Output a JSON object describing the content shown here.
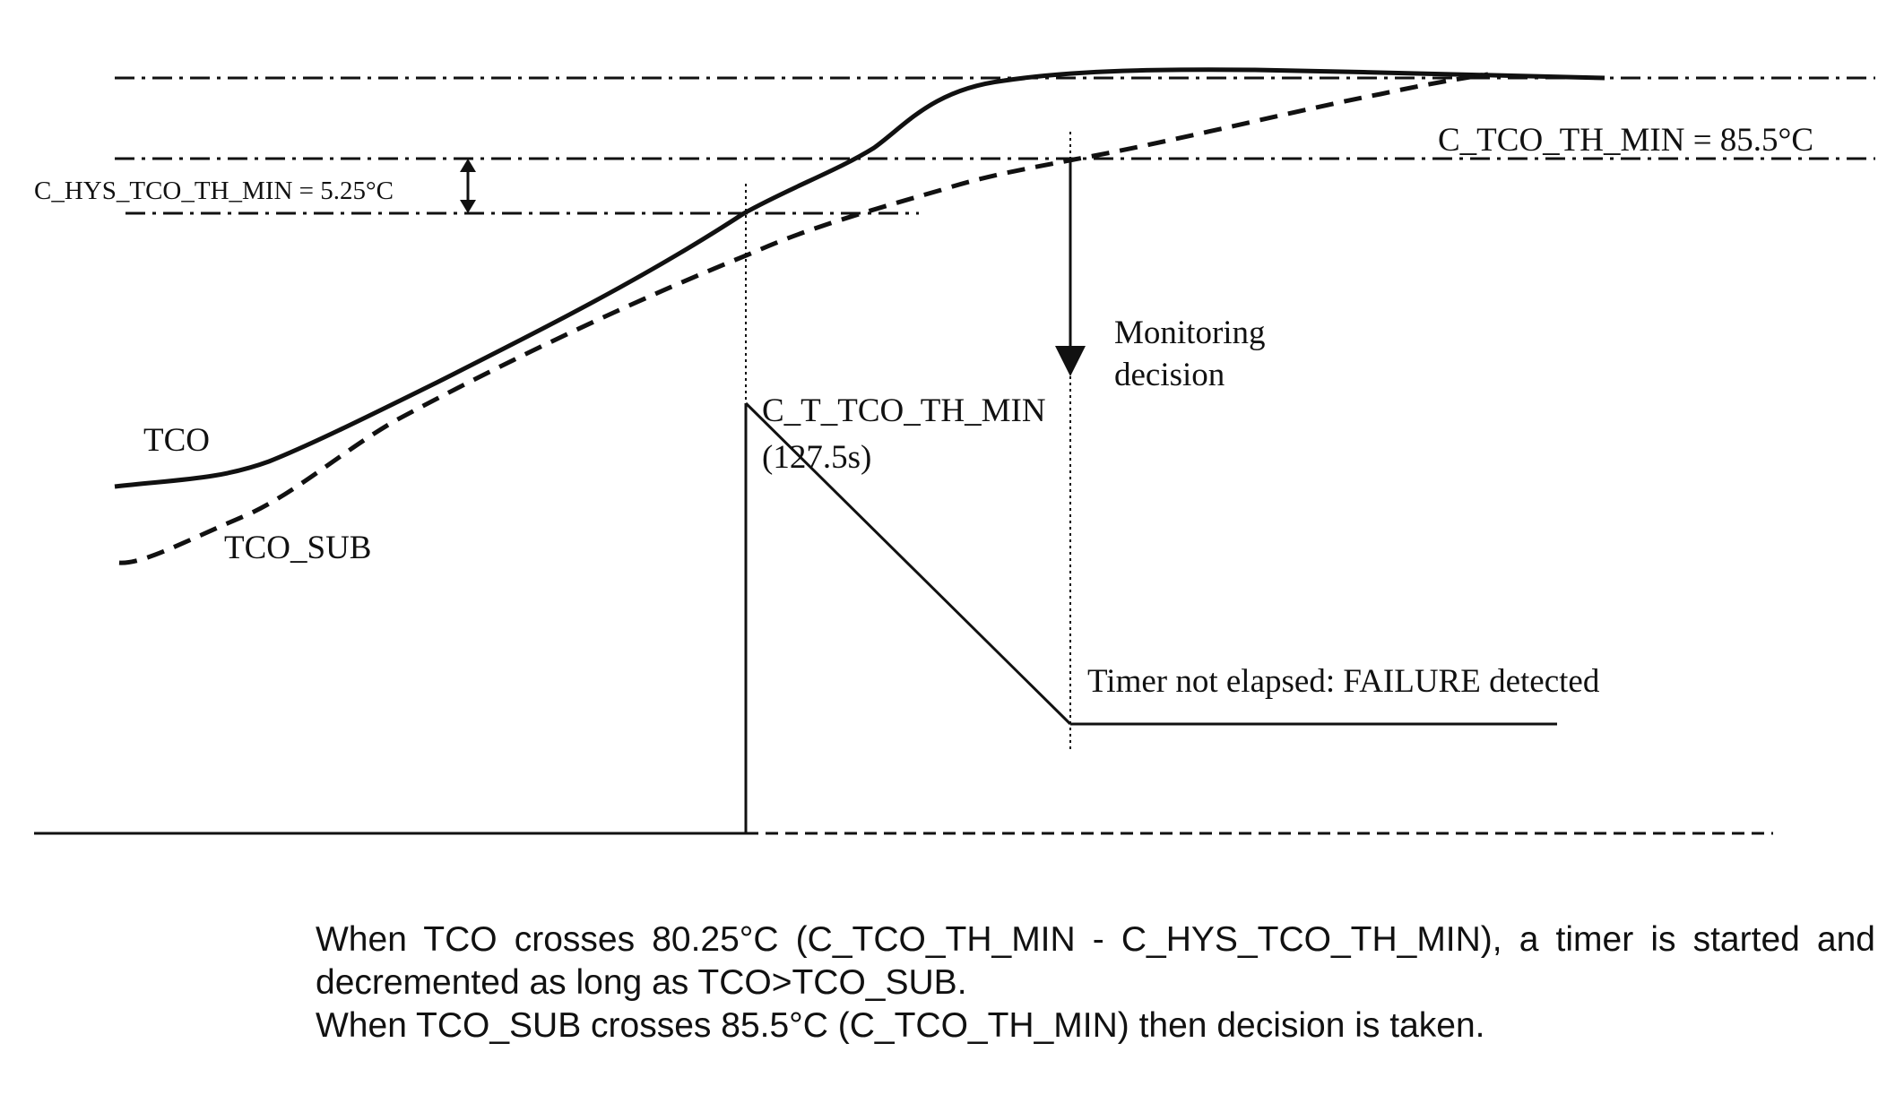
{
  "labels": {
    "tco": "TCO",
    "tco_sub": "TCO_SUB",
    "threshold": "C_TCO_TH_MIN = 85.5°C",
    "hysteresis": "C_HYS_TCO_TH_MIN = 5.25°C",
    "timer_name": "C_T_TCO_TH_MIN",
    "timer_value": "(127.5s)",
    "monitoring_line1": "Monitoring",
    "monitoring_line2": "decision",
    "failure": "Timer not elapsed: FAILURE detected"
  },
  "caption": {
    "line1": "When TCO crosses 80.25°C (C_TCO_TH_MIN - C_HYS_TCO_TH_MIN), a timer is started and decremented as long as TCO>TCO_SUB.",
    "line2": "When TCO_SUB crosses 85.5°C (C_TCO_TH_MIN) then decision is taken."
  },
  "colors": {
    "ink": "#111111",
    "background": "#ffffff"
  }
}
